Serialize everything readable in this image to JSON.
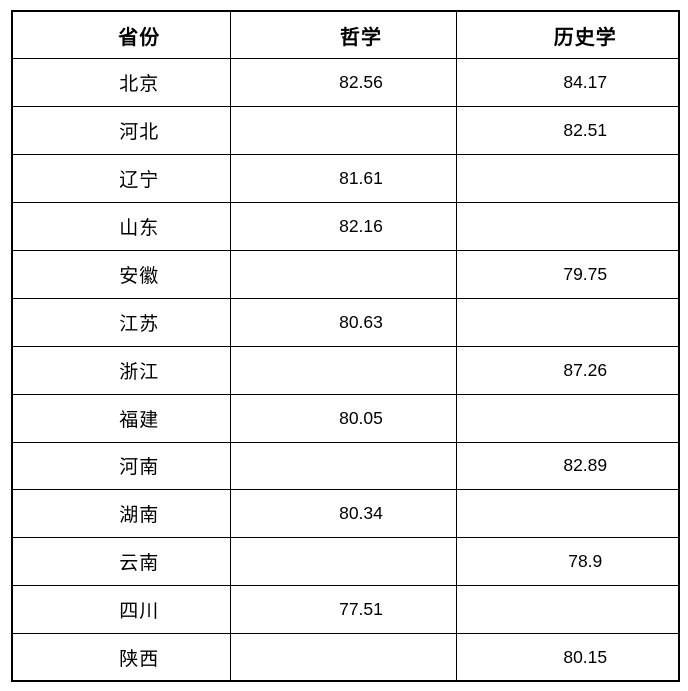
{
  "page": {
    "background_color": "#ffffff",
    "border_color": "#000000",
    "text_color": "#000000"
  },
  "table": {
    "columns": [
      {
        "label": "省份"
      },
      {
        "label": "哲学"
      },
      {
        "label": "历史学"
      }
    ],
    "rows": [
      {
        "province": "北京",
        "philosophy": "82.56",
        "history": "84.17"
      },
      {
        "province": "河北",
        "philosophy": "",
        "history": "82.51"
      },
      {
        "province": "辽宁",
        "philosophy": "81.61",
        "history": ""
      },
      {
        "province": "山东",
        "philosophy": "82.16",
        "history": ""
      },
      {
        "province": "安徽",
        "philosophy": "",
        "history": "79.75"
      },
      {
        "province": "江苏",
        "philosophy": "80.63",
        "history": ""
      },
      {
        "province": "浙江",
        "philosophy": "",
        "history": "87.26"
      },
      {
        "province": "福建",
        "philosophy": "80.05",
        "history": ""
      },
      {
        "province": "河南",
        "philosophy": "",
        "history": "82.89"
      },
      {
        "province": "湖南",
        "philosophy": "80.34",
        "history": ""
      },
      {
        "province": "云南",
        "philosophy": "",
        "history": "78.9"
      },
      {
        "province": "四川",
        "philosophy": "77.51",
        "history": ""
      },
      {
        "province": "陕西",
        "philosophy": "",
        "history": "80.15"
      }
    ]
  },
  "chart_data": {
    "type": "table",
    "title": "",
    "columns": [
      "省份",
      "哲学",
      "历史学"
    ],
    "rows": [
      [
        "北京",
        82.56,
        84.17
      ],
      [
        "河北",
        null,
        82.51
      ],
      [
        "辽宁",
        81.61,
        null
      ],
      [
        "山东",
        82.16,
        null
      ],
      [
        "安徽",
        null,
        79.75
      ],
      [
        "江苏",
        80.63,
        null
      ],
      [
        "浙江",
        null,
        87.26
      ],
      [
        "福建",
        80.05,
        null
      ],
      [
        "河南",
        null,
        82.89
      ],
      [
        "湖南",
        80.34,
        null
      ],
      [
        "云南",
        null,
        78.9
      ],
      [
        "四川",
        77.51,
        null
      ],
      [
        "陕西",
        null,
        80.15
      ]
    ],
    "layout": {
      "grid": true,
      "header_bold": true,
      "cell_align": "center"
    }
  }
}
